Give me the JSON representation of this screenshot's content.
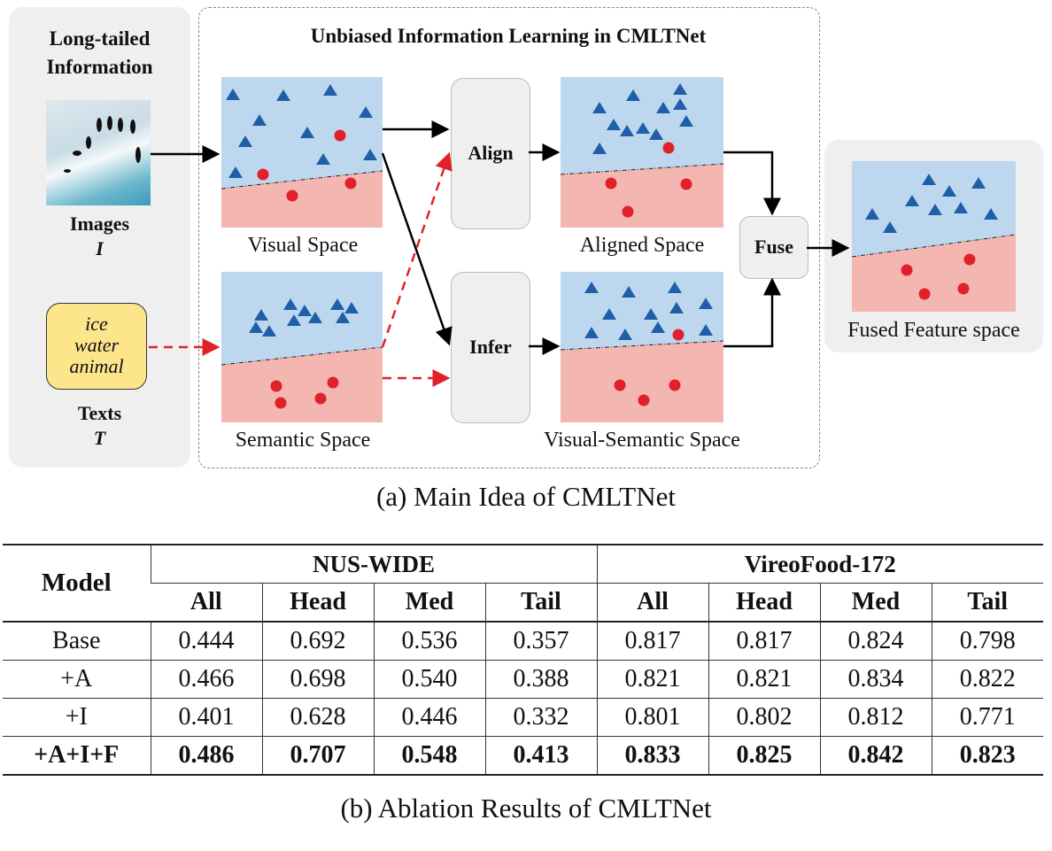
{
  "diagram": {
    "left_panel": {
      "title": "Long-tailed Information",
      "images_label": "Images",
      "images_symbol": "I",
      "text_words": [
        "ice",
        "water",
        "animal"
      ],
      "texts_label": "Texts",
      "texts_symbol": "T"
    },
    "main_title": "Unbiased Information Learning in CMLTNet",
    "visual_space": "Visual Space",
    "semantic_space": "Semantic Space",
    "align": "Align",
    "infer": "Infer",
    "aligned_space": "Aligned Space",
    "visual_semantic_space": "Visual-Semantic Space",
    "fuse": "Fuse",
    "fused_space": "Fused Feature space",
    "caption": "(a) Main Idea of CMLTNet",
    "colors": {
      "head_region": "#bdd7ee",
      "tail_region": "#f4b6b0",
      "triangle": "#1f5fa8",
      "circle": "#e0212b",
      "text_box": "#fde58c",
      "panel": "#efefef"
    }
  },
  "table": {
    "model_header": "Model",
    "groups": [
      "NUS-WIDE",
      "VireoFood-172"
    ],
    "subheaders": [
      "All",
      "Head",
      "Med",
      "Tail",
      "All",
      "Head",
      "Med",
      "Tail"
    ],
    "rows": [
      {
        "model": "Base",
        "values": [
          "0.444",
          "0.692",
          "0.536",
          "0.357",
          "0.817",
          "0.817",
          "0.824",
          "0.798"
        ]
      },
      {
        "model": "+A",
        "values": [
          "0.466",
          "0.698",
          "0.540",
          "0.388",
          "0.821",
          "0.821",
          "0.834",
          "0.822"
        ]
      },
      {
        "model": "+I",
        "values": [
          "0.401",
          "0.628",
          "0.446",
          "0.332",
          "0.801",
          "0.802",
          "0.812",
          "0.771"
        ]
      },
      {
        "model": "+A+I+F",
        "values": [
          "0.486",
          "0.707",
          "0.548",
          "0.413",
          "0.833",
          "0.825",
          "0.842",
          "0.823"
        ],
        "bold": true
      }
    ],
    "caption": "(b) Ablation Results of CMLTNet"
  }
}
